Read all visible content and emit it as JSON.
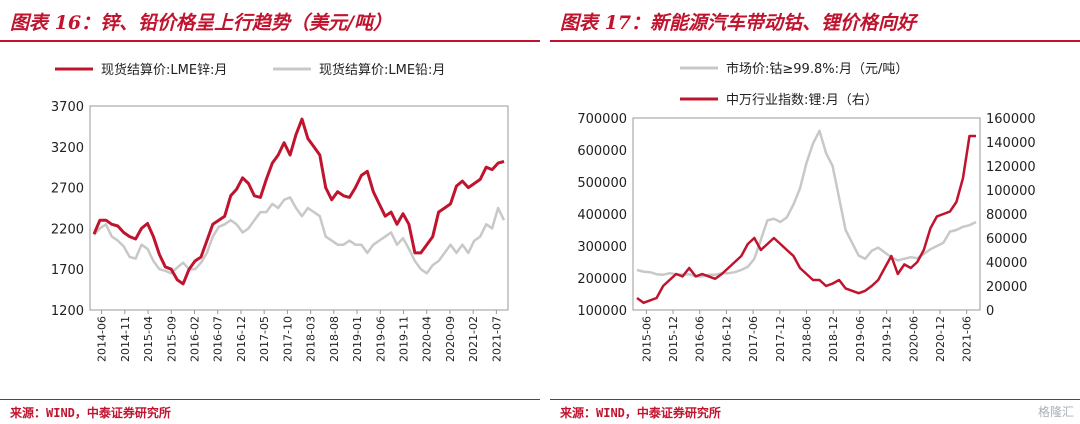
{
  "colors": {
    "accent": "#c0142e",
    "gray": "#c8c8c8"
  },
  "watermark": "格隆汇",
  "left": {
    "title": "图表 16：锌、铅价格呈上行趋势（美元/吨）",
    "source": "来源：WIND，中泰证券研究所",
    "chart_data": {
      "type": "line",
      "x_ticks": [
        "2014-06",
        "2014-11",
        "2015-04",
        "2015-09",
        "2016-02",
        "2016-07",
        "2016-12",
        "2017-05",
        "2017-10",
        "2018-03",
        "2018-08",
        "2019-01",
        "2019-06",
        "2019-11",
        "2020-04",
        "2020-09",
        "2021-02",
        "2021-07"
      ],
      "ylim": [
        1200,
        3700
      ],
      "y_ticks": [
        1200,
        1700,
        2200,
        2700,
        3200,
        3700
      ],
      "series": [
        {
          "name": "现货结算价:LME锌:月",
          "color": "#c0142e",
          "values": [
            2130,
            2300,
            2300,
            2250,
            2230,
            2150,
            2100,
            2070,
            2200,
            2260,
            2100,
            1880,
            1730,
            1700,
            1570,
            1520,
            1700,
            1800,
            1850,
            2050,
            2250,
            2300,
            2350,
            2600,
            2680,
            2820,
            2750,
            2600,
            2580,
            2800,
            3000,
            3100,
            3250,
            3100,
            3350,
            3540,
            3300,
            3200,
            3100,
            2700,
            2550,
            2650,
            2600,
            2580,
            2700,
            2850,
            2900,
            2650,
            2500,
            2350,
            2400,
            2250,
            2380,
            2250,
            1900,
            1900,
            2000,
            2100,
            2400,
            2450,
            2500,
            2720,
            2780,
            2700,
            2750,
            2800,
            2950,
            2920,
            3000,
            3020
          ]
        },
        {
          "name": "现货结算价:LME铅:月",
          "color": "#c8c8c8",
          "values": [
            2120,
            2200,
            2250,
            2100,
            2050,
            1980,
            1850,
            1830,
            2000,
            1950,
            1800,
            1700,
            1680,
            1650,
            1720,
            1780,
            1700,
            1700,
            1780,
            1900,
            2100,
            2220,
            2250,
            2300,
            2250,
            2150,
            2200,
            2300,
            2400,
            2400,
            2500,
            2450,
            2550,
            2580,
            2450,
            2350,
            2450,
            2400,
            2350,
            2100,
            2050,
            2000,
            2000,
            2050,
            2000,
            2000,
            1900,
            2000,
            2050,
            2100,
            2150,
            2000,
            2080,
            1950,
            1800,
            1700,
            1650,
            1750,
            1800,
            1900,
            2000,
            1900,
            2000,
            1900,
            2050,
            2100,
            2250,
            2200,
            2450,
            2300
          ]
        }
      ]
    }
  },
  "right": {
    "title": "图表 17：新能源汽车带动钴、锂价格向好",
    "source": "来源：WIND，中泰证券研究所",
    "chart_data": {
      "type": "line",
      "x_ticks": [
        "2015-06",
        "2015-12",
        "2016-06",
        "2016-12",
        "2017-06",
        "2017-12",
        "2018-06",
        "2018-12",
        "2019-06",
        "2019-12",
        "2020-06",
        "2020-12",
        "2021-06"
      ],
      "ylim_left": [
        100000,
        700000
      ],
      "y_ticks_left": [
        100000,
        200000,
        300000,
        400000,
        500000,
        600000,
        700000
      ],
      "ylim_right": [
        0,
        160000
      ],
      "y_ticks_right": [
        0,
        20000,
        40000,
        60000,
        80000,
        100000,
        120000,
        140000,
        160000
      ],
      "series": [
        {
          "name": "市场价:钴≥99.8%:月（元/吨）",
          "axis": "left",
          "color": "#c8c8c8",
          "values": [
            225000,
            220000,
            218000,
            212000,
            210000,
            215000,
            212000,
            210000,
            212000,
            205000,
            205000,
            210000,
            210000,
            215000,
            215000,
            218000,
            225000,
            235000,
            260000,
            320000,
            380000,
            385000,
            375000,
            390000,
            430000,
            480000,
            560000,
            620000,
            660000,
            590000,
            550000,
            450000,
            350000,
            310000,
            270000,
            260000,
            285000,
            295000,
            280000,
            265000,
            255000,
            260000,
            265000,
            262000,
            275000,
            290000,
            300000,
            310000,
            345000,
            350000,
            360000,
            365000,
            375000
          ]
        },
        {
          "name": "中万行业指数:锂:月（右）",
          "axis": "right",
          "color": "#c0142e",
          "values": [
            10000,
            6000,
            8000,
            10000,
            20000,
            25000,
            30000,
            28000,
            35000,
            28000,
            30000,
            28000,
            26000,
            30000,
            35000,
            40000,
            45000,
            55000,
            60000,
            50000,
            55000,
            60000,
            55000,
            50000,
            45000,
            35000,
            30000,
            25000,
            25000,
            20000,
            22000,
            25000,
            18000,
            16000,
            14000,
            16000,
            20000,
            25000,
            35000,
            45000,
            30000,
            38000,
            35000,
            40000,
            50000,
            68000,
            78000,
            80000,
            82000,
            90000,
            110000,
            145000,
            145000
          ]
        }
      ]
    }
  }
}
